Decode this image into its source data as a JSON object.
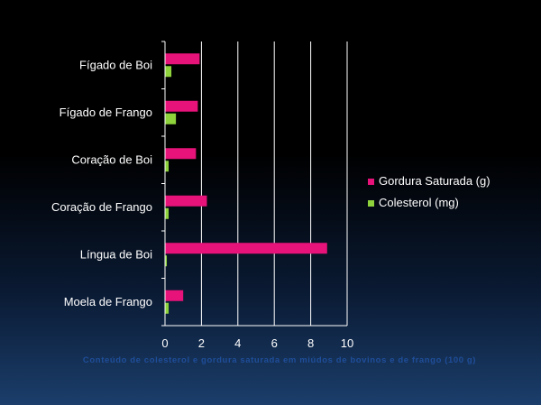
{
  "chart_data": {
    "type": "bar",
    "orientation": "horizontal",
    "categories": [
      "Fígado de Boi",
      "Fígado de Frango",
      "Coração de Boi",
      "Coração de Frango",
      "Língua de Boi",
      "Moela de Frango"
    ],
    "series": [
      {
        "name": "Gordura Saturada (g)",
        "color": "#e8137a",
        "values": [
          1.9,
          1.8,
          1.7,
          2.3,
          8.9,
          1.0
        ]
      },
      {
        "name": "Colesterol (mg)",
        "color": "#8ed23c",
        "values": [
          0.35,
          0.6,
          0.2,
          0.2,
          0.1,
          0.2
        ]
      }
    ],
    "x_ticks": [
      "0",
      "2",
      "4",
      "6",
      "8",
      "10"
    ],
    "xlim": [
      0,
      10
    ],
    "grid": "vertical",
    "legend_position": "right",
    "caption": "Conteúdo de colesterol e gordura saturada em miúdos de bovinos e de frango (100 g)",
    "colors": {
      "axis": "#ffffff",
      "gridline": "#ffffff",
      "caption": "#1f4e9a"
    }
  }
}
